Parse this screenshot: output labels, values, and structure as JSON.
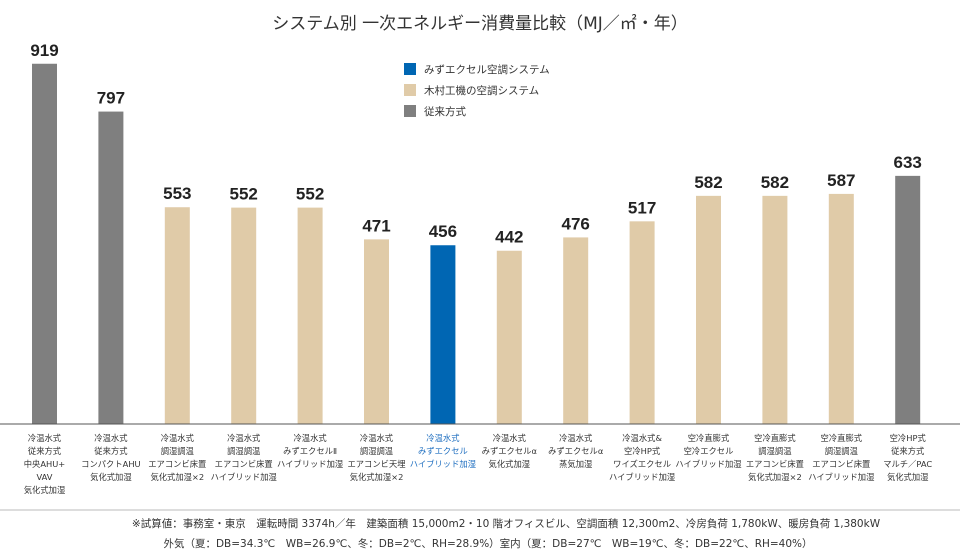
{
  "chart_data": {
    "type": "bar",
    "title": "システム別 一次エネルギー消費量比較（MJ／㎡・年）",
    "legend": [
      {
        "name": "みずエクセル空調システム",
        "color": "#0066b3"
      },
      {
        "name": "木村工機の空調システム",
        "color": "#e0cba8"
      },
      {
        "name": "従来方式",
        "color": "#7f7f7f"
      }
    ],
    "legend_position": "top-center",
    "ylim": [
      0,
      1000
    ],
    "grid": false,
    "categories": [
      [
        "冷温水式",
        "従来方式",
        "中央AHU+",
        "VAV",
        "気化式加湿"
      ],
      [
        "冷温水式",
        "従来方式",
        "コンパクトAHU",
        "気化式加湿"
      ],
      [
        "冷温水式",
        "調湿調温",
        "エアコンビ床置",
        "気化式加湿×2"
      ],
      [
        "冷温水式",
        "調湿調温",
        "エアコンビ床置",
        "ハイブリッド加湿"
      ],
      [
        "冷温水式",
        "みずエクセルⅡ",
        "ハイブリッド加湿"
      ],
      [
        "冷温水式",
        "調湿調温",
        "エアコンビ天埋",
        "気化式加湿×2"
      ],
      [
        "冷温水式",
        "みずエクセル",
        "ハイブリッド加湿"
      ],
      [
        "冷温水式",
        "みずエクセルα",
        "気化式加湿"
      ],
      [
        "冷温水式",
        "みずエクセルα",
        "蒸気加湿"
      ],
      [
        "冷温水式&",
        "空冷HP式",
        "ワイズエクセル",
        "ハイブリッド加湿"
      ],
      [
        "空冷直膨式",
        "空冷エクセル",
        "ハイブリッド加湿"
      ],
      [
        "空冷直膨式",
        "調湿調温",
        "エアコンビ床置",
        "気化式加湿×2"
      ],
      [
        "空冷直膨式",
        "調湿調温",
        "エアコンビ床置",
        "ハイブリッド加湿"
      ],
      [
        "空冷HP式",
        "従来方式",
        "マルチ／PAC",
        "気化式加湿"
      ]
    ],
    "values": [
      919,
      797,
      553,
      552,
      552,
      471,
      456,
      442,
      476,
      517,
      582,
      582,
      587,
      633
    ],
    "bar_group": [
      "従来方式",
      "従来方式",
      "木村工機の空調システム",
      "木村工機の空調システム",
      "木村工機の空調システム",
      "木村工機の空調システム",
      "みずエクセル空調システム",
      "木村工機の空調システム",
      "木村工機の空調システム",
      "木村工機の空調システム",
      "木村工機の空調システム",
      "木村工機の空調システム",
      "木村工機の空調システム",
      "従来方式"
    ],
    "highlight_label_color": "#1f6fc0"
  },
  "footnote": {
    "line1": "※試算値：事務室・東京　運転時間 3374h／年　建築面積 15,000m2・10 階オフィスビル、空調面積 12,300m2、冷房負荷 1,780kW、暖房負荷 1,380kW",
    "line2": "外気（夏：DB=34.3℃　WB=26.9℃、冬：DB=2℃、RH=28.9%）室内（夏：DB=27℃　WB=19℃、冬：DB=22℃、RH=40%）"
  }
}
